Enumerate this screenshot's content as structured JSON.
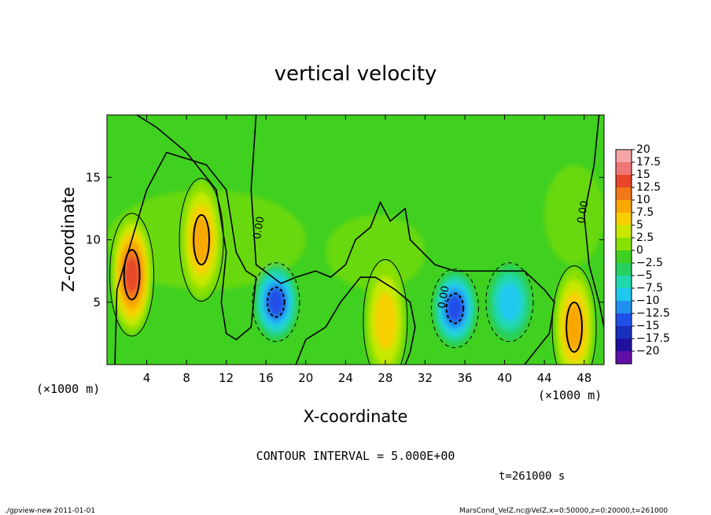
{
  "chart_data": {
    "type": "heatmap",
    "title": "vertical velocity",
    "xlabel": "X-coordinate",
    "ylabel": "Z-coordinate",
    "x_unit_left": "(×1000 m)",
    "x_unit_right": "(×1000 m)",
    "xlim": [
      0,
      50
    ],
    "ylim": [
      0,
      20
    ],
    "x_ticks": [
      "4",
      "8",
      "12",
      "16",
      "20",
      "24",
      "28",
      "32",
      "36",
      "40",
      "44",
      "48"
    ],
    "y_ticks": [
      "5",
      "10",
      "15"
    ],
    "x_tick_values": [
      4,
      8,
      12,
      16,
      20,
      24,
      28,
      32,
      36,
      40,
      44,
      48
    ],
    "y_tick_values": [
      5,
      10,
      15
    ],
    "contour_labels": [
      "0.00",
      "0.00",
      "0.00"
    ],
    "contour_interval": "CONTOUR INTERVAL = 5.000E+00",
    "time_label": "t=261000 s",
    "footer_left": "./gpview-new   2011-01-01",
    "footer_right": "MarsCond_VelZ.nc@VelZ,x=0:50000,z=0:20000,t=261000",
    "colorbar": {
      "labels": [
        "20",
        "17.5",
        "15",
        "12.5",
        "10",
        "7.5",
        "5",
        "2.5",
        "0",
        "−2.5",
        "−5",
        "−7.5",
        "−10",
        "−12.5",
        "−15",
        "−17.5",
        "−20"
      ],
      "colors": [
        "#f6a6a6",
        "#f07676",
        "#e8462a",
        "#f07818",
        "#f8a800",
        "#f8d000",
        "#c8e800",
        "#88e000",
        "#40d020",
        "#28d060",
        "#20d8b0",
        "#20c8f0",
        "#2090f0",
        "#2050e8",
        "#1830c0",
        "#2010a0",
        "#6010a8"
      ]
    },
    "features": [
      {
        "kind": "updraft",
        "x": 2.5,
        "z": 7.2,
        "peak": 15
      },
      {
        "kind": "updraft",
        "x": 9.5,
        "z": 10.0,
        "peak": 10
      },
      {
        "kind": "updraft",
        "x": 28.0,
        "z": 3.5,
        "peak": 7.5
      },
      {
        "kind": "updraft",
        "x": 47.0,
        "z": 3.0,
        "peak": 10
      },
      {
        "kind": "downdraft",
        "x": 17.0,
        "z": 5.0,
        "peak": -12.5
      },
      {
        "kind": "downdraft",
        "x": 35.0,
        "z": 4.5,
        "peak": -12.5
      },
      {
        "kind": "downdraft",
        "x": 40.5,
        "z": 5.0,
        "peak": -7.5
      }
    ]
  }
}
